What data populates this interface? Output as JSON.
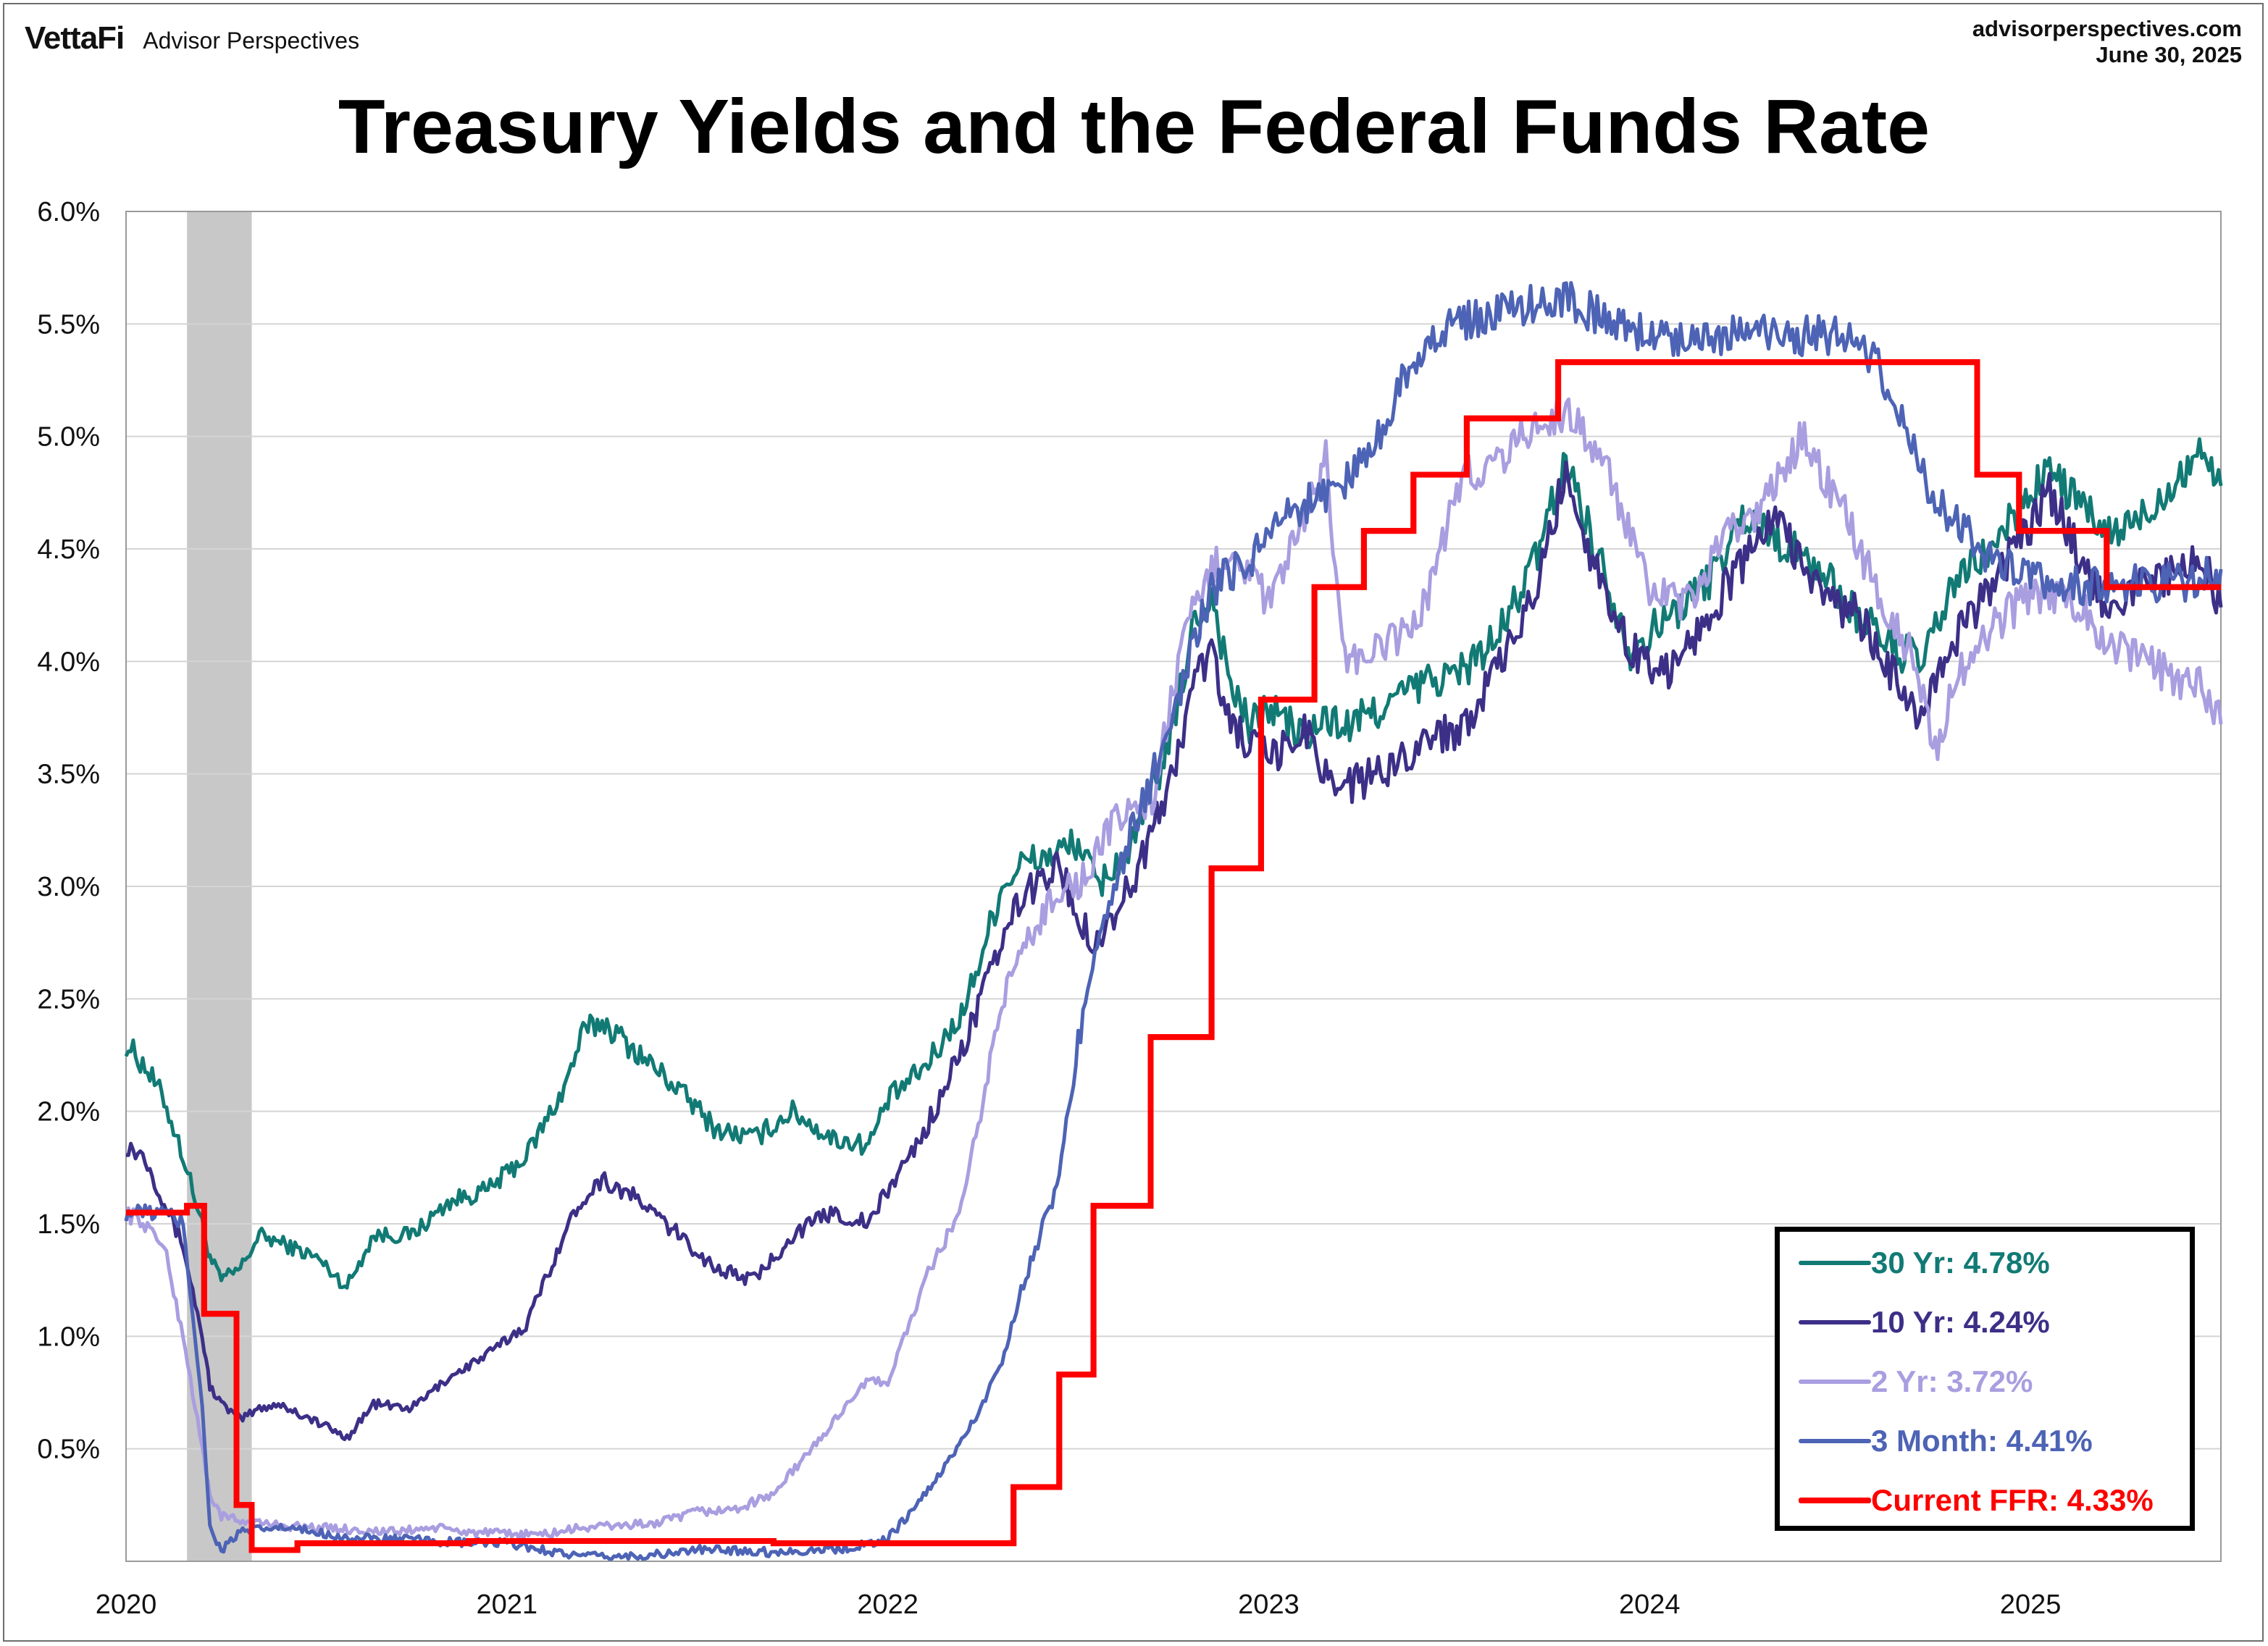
{
  "header": {
    "brand": "VettaFi",
    "brand_sub": "Advisor Perspectives",
    "source": "advisorperspectives.com",
    "date": "June 30, 2025"
  },
  "chart_data": {
    "type": "line",
    "title": "Treasury Yields and the Federal Funds Rate",
    "xlabel": "",
    "ylabel": "",
    "xlim": [
      2020.0,
      2025.5
    ],
    "ylim": [
      0.0,
      6.0
    ],
    "grid": true,
    "legend_position": "bottom-right",
    "x_ticks": [
      "2020",
      "2021",
      "2022",
      "2023",
      "2024",
      "2025"
    ],
    "y_ticks": [
      "0.5%",
      "1.0%",
      "1.5%",
      "2.0%",
      "2.5%",
      "3.0%",
      "3.5%",
      "4.0%",
      "4.5%",
      "5.0%",
      "5.5%",
      "6.0%"
    ],
    "recession": {
      "start": 2020.16,
      "end": 2020.33,
      "color": "#c8c8c8"
    },
    "series": [
      {
        "name": "30 Yr: 4.78%",
        "color": "#127a75",
        "x": [
          2020.0,
          2020.05,
          2020.1,
          2020.15,
          2020.2,
          2020.22,
          2020.25,
          2020.3,
          2020.35,
          2020.4,
          2020.5,
          2020.58,
          2020.65,
          2020.75,
          2020.85,
          2020.95,
          2021.05,
          2021.15,
          2021.2,
          2021.25,
          2021.35,
          2021.45,
          2021.55,
          2021.65,
          2021.75,
          2021.85,
          2021.95,
          2022.0,
          2022.1,
          2022.2,
          2022.3,
          2022.35,
          2022.45,
          2022.5,
          2022.55,
          2022.65,
          2022.75,
          2022.8,
          2022.85,
          2022.9,
          2022.95,
          2023.0,
          2023.1,
          2023.15,
          2023.2,
          2023.3,
          2023.4,
          2023.5,
          2023.6,
          2023.7,
          2023.78,
          2023.85,
          2023.95,
          2024.05,
          2024.15,
          2024.25,
          2024.33,
          2024.45,
          2024.55,
          2024.65,
          2024.72,
          2024.8,
          2024.9,
          2025.0,
          2025.05,
          2025.12,
          2025.2,
          2025.3,
          2025.4,
          2025.45,
          2025.5
        ],
        "values": [
          2.3,
          2.2,
          2.05,
          1.8,
          1.5,
          1.35,
          1.25,
          1.3,
          1.45,
          1.42,
          1.35,
          1.22,
          1.45,
          1.45,
          1.6,
          1.65,
          1.8,
          2.1,
          2.35,
          2.4,
          2.25,
          2.1,
          1.92,
          1.88,
          2.0,
          1.88,
          1.85,
          2.05,
          2.2,
          2.45,
          3.0,
          3.1,
          3.15,
          3.2,
          3.0,
          3.2,
          3.7,
          4.15,
          4.3,
          3.9,
          3.7,
          3.8,
          3.65,
          3.75,
          3.7,
          3.8,
          3.9,
          3.95,
          4.1,
          4.45,
          4.9,
          4.55,
          4.05,
          4.2,
          4.35,
          4.65,
          4.55,
          4.4,
          4.2,
          4.05,
          4.0,
          4.35,
          4.5,
          4.75,
          4.85,
          4.72,
          4.55,
          4.65,
          4.85,
          4.95,
          4.78
        ]
      },
      {
        "name": "10 Yr: 4.24%",
        "color": "#3c2f87",
        "x": [
          2020.0,
          2020.05,
          2020.1,
          2020.15,
          2020.2,
          2020.22,
          2020.25,
          2020.3,
          2020.35,
          2020.4,
          2020.5,
          2020.58,
          2020.65,
          2020.75,
          2020.85,
          2020.95,
          2021.05,
          2021.15,
          2021.2,
          2021.25,
          2021.35,
          2021.45,
          2021.55,
          2021.65,
          2021.75,
          2021.85,
          2021.95,
          2022.0,
          2022.1,
          2022.2,
          2022.3,
          2022.35,
          2022.45,
          2022.5,
          2022.55,
          2022.65,
          2022.75,
          2022.8,
          2022.85,
          2022.9,
          2022.95,
          2023.0,
          2023.1,
          2023.15,
          2023.2,
          2023.3,
          2023.4,
          2023.5,
          2023.6,
          2023.7,
          2023.78,
          2023.85,
          2023.95,
          2024.05,
          2024.15,
          2024.25,
          2024.33,
          2024.45,
          2024.55,
          2024.65,
          2024.72,
          2024.8,
          2024.9,
          2025.0,
          2025.05,
          2025.12,
          2025.2,
          2025.3,
          2025.4,
          2025.45,
          2025.5
        ],
        "values": [
          1.85,
          1.8,
          1.6,
          1.4,
          1.0,
          0.78,
          0.7,
          0.63,
          0.68,
          0.7,
          0.62,
          0.55,
          0.7,
          0.68,
          0.82,
          0.92,
          1.05,
          1.45,
          1.62,
          1.7,
          1.6,
          1.45,
          1.3,
          1.25,
          1.45,
          1.55,
          1.5,
          1.65,
          1.92,
          2.3,
          2.75,
          2.95,
          3.1,
          2.85,
          2.75,
          3.05,
          3.5,
          3.9,
          4.05,
          3.7,
          3.65,
          3.55,
          3.7,
          3.5,
          3.45,
          3.5,
          3.65,
          3.7,
          3.95,
          4.3,
          4.85,
          4.45,
          4.05,
          3.95,
          4.2,
          4.45,
          4.65,
          4.3,
          4.2,
          3.9,
          3.75,
          4.1,
          4.35,
          4.6,
          4.75,
          4.5,
          4.25,
          4.35,
          4.4,
          4.45,
          4.24
        ]
      },
      {
        "name": "2 Yr: 3.72%",
        "color": "#a99ee0",
        "x": [
          2020.0,
          2020.05,
          2020.1,
          2020.15,
          2020.2,
          2020.22,
          2020.25,
          2020.3,
          2020.4,
          2020.5,
          2020.6,
          2020.7,
          2020.8,
          2020.9,
          2021.0,
          2021.1,
          2021.2,
          2021.3,
          2021.4,
          2021.5,
          2021.6,
          2021.7,
          2021.75,
          2021.8,
          2021.85,
          2021.9,
          2021.95,
          2022.0,
          2022.1,
          2022.2,
          2022.3,
          2022.35,
          2022.45,
          2022.5,
          2022.6,
          2022.7,
          2022.75,
          2022.8,
          2022.85,
          2022.9,
          2022.95,
          2023.0,
          2023.1,
          2023.15,
          2023.2,
          2023.3,
          2023.4,
          2023.5,
          2023.6,
          2023.7,
          2023.8,
          2023.9,
          2024.0,
          2024.1,
          2024.2,
          2024.3,
          2024.4,
          2024.5,
          2024.6,
          2024.7,
          2024.75,
          2024.8,
          2024.9,
          2025.0,
          2025.1,
          2025.2,
          2025.3,
          2025.4,
          2025.45,
          2025.5
        ],
        "values": [
          1.55,
          1.5,
          1.4,
          1.0,
          0.5,
          0.3,
          0.2,
          0.18,
          0.16,
          0.15,
          0.14,
          0.13,
          0.15,
          0.13,
          0.12,
          0.12,
          0.15,
          0.16,
          0.17,
          0.22,
          0.23,
          0.3,
          0.4,
          0.5,
          0.6,
          0.72,
          0.8,
          0.8,
          1.25,
          1.6,
          2.5,
          2.7,
          3.0,
          3.0,
          3.3,
          3.4,
          3.9,
          4.2,
          4.4,
          4.5,
          4.4,
          4.25,
          4.65,
          4.9,
          4.0,
          4.05,
          4.2,
          4.8,
          4.9,
          5.05,
          5.1,
          4.8,
          4.3,
          4.25,
          4.55,
          4.7,
          5.0,
          4.7,
          4.3,
          4.0,
          3.6,
          3.9,
          4.15,
          4.3,
          4.3,
          4.1,
          4.0,
          3.9,
          3.9,
          3.72
        ]
      },
      {
        "name": "3 Month: 4.41%",
        "color": "#4d63b5",
        "x": [
          2020.0,
          2020.05,
          2020.1,
          2020.15,
          2020.2,
          2020.22,
          2020.25,
          2020.3,
          2020.4,
          2020.5,
          2020.6,
          2020.7,
          2020.8,
          2020.9,
          2021.0,
          2021.1,
          2021.2,
          2021.3,
          2021.4,
          2021.5,
          2021.6,
          2021.7,
          2021.8,
          2021.9,
          2022.0,
          2022.1,
          2022.2,
          2022.25,
          2022.3,
          2022.35,
          2022.4,
          2022.45,
          2022.5,
          2022.55,
          2022.6,
          2022.65,
          2022.7,
          2022.75,
          2022.8,
          2022.85,
          2022.9,
          2022.95,
          2023.0,
          2023.1,
          2023.2,
          2023.25,
          2023.3,
          2023.35,
          2023.4,
          2023.45,
          2023.5,
          2023.6,
          2023.7,
          2023.8,
          2023.9,
          2024.0,
          2024.1,
          2024.2,
          2024.3,
          2024.4,
          2024.5,
          2024.55,
          2024.6,
          2024.65,
          2024.7,
          2024.75,
          2024.8,
          2024.85,
          2024.9,
          2025.0,
          2025.1,
          2025.2,
          2025.3,
          2025.4,
          2025.5
        ],
        "values": [
          1.55,
          1.55,
          1.55,
          1.5,
          0.7,
          0.15,
          0.05,
          0.13,
          0.15,
          0.13,
          0.1,
          0.1,
          0.09,
          0.08,
          0.08,
          0.05,
          0.02,
          0.02,
          0.03,
          0.05,
          0.05,
          0.04,
          0.05,
          0.06,
          0.1,
          0.3,
          0.55,
          0.7,
          0.9,
          1.2,
          1.45,
          1.7,
          2.3,
          2.8,
          3.0,
          3.3,
          3.5,
          3.7,
          4.1,
          4.3,
          4.4,
          4.45,
          4.6,
          4.7,
          4.8,
          4.9,
          5.05,
          5.25,
          5.4,
          5.45,
          5.5,
          5.55,
          5.6,
          5.6,
          5.5,
          5.45,
          5.45,
          5.45,
          5.45,
          5.45,
          5.45,
          5.4,
          5.3,
          5.15,
          4.9,
          4.7,
          4.65,
          4.55,
          4.45,
          4.35,
          4.35,
          4.32,
          4.35,
          4.35,
          4.41
        ]
      },
      {
        "name": "Current FFR: 4.33%",
        "color": "#ff0000",
        "step": true,
        "x": [
          2020.0,
          2020.16,
          2020.205,
          2020.29,
          2020.33,
          2020.45,
          2020.9,
          2021.7,
          2021.85,
          2022.2,
          2022.33,
          2022.45,
          2022.54,
          2022.69,
          2022.85,
          2022.98,
          2023.12,
          2023.25,
          2023.38,
          2023.52,
          2023.76,
          2024.0,
          2024.5,
          2024.71,
          2024.86,
          2024.97,
          2025.2,
          2025.5
        ],
        "values": [
          1.55,
          1.58,
          1.1,
          0.25,
          0.05,
          0.08,
          0.09,
          0.08,
          0.08,
          0.08,
          0.33,
          0.83,
          1.58,
          2.33,
          3.08,
          3.83,
          4.33,
          4.58,
          4.83,
          5.08,
          5.33,
          5.33,
          5.33,
          5.33,
          4.83,
          4.58,
          4.33,
          4.33
        ]
      }
    ]
  }
}
